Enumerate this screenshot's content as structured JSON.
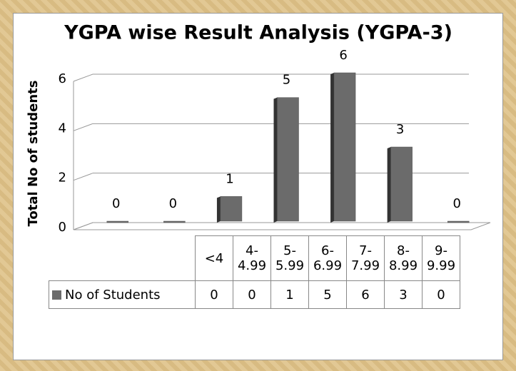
{
  "chart_data": {
    "type": "bar",
    "title": "YGPA wise Result Analysis (YGPA-3)",
    "y_label": "Total No of students",
    "categories": [
      "<4",
      "4-4.99",
      "5-5.99",
      "6-6.99",
      "7-7.99",
      "8-8.99",
      "9-9.99"
    ],
    "series": [
      {
        "name": "No of Students",
        "color": "#6b6b6b",
        "values": [
          0,
          0,
          1,
          5,
          6,
          3,
          0
        ]
      }
    ],
    "ylim": [
      0,
      6
    ],
    "yticks": [
      0,
      2,
      4,
      6
    ],
    "grid": true
  }
}
